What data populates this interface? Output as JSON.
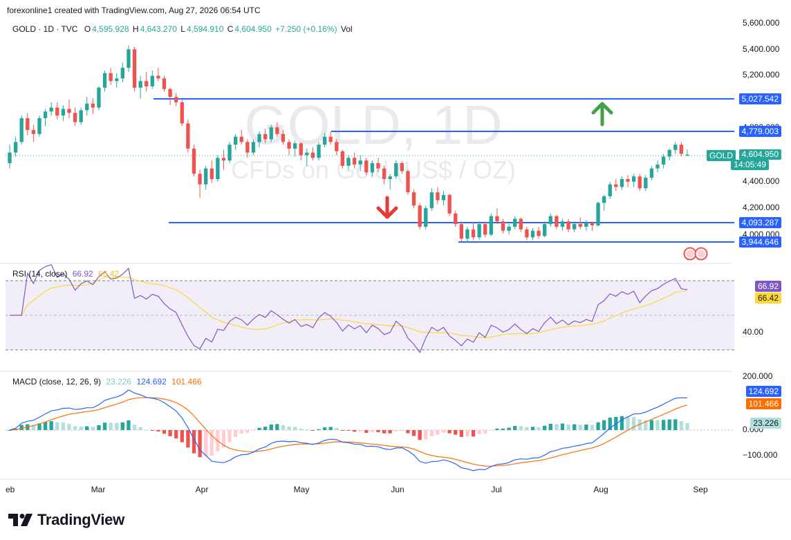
{
  "header": {
    "publisher_line": "forexonline1 created with TradingView.com, Aug 27, 2026 06:54 UTC",
    "symbol": "GOLD · 1D · TVC",
    "open_label": "O",
    "open": "4,595.928",
    "high_label": "H",
    "high": "4,643.270",
    "low_label": "L",
    "low": "4,594.910",
    "close_label": "C",
    "close": "4,604.950",
    "change": "+7.250 (+0.16%)",
    "vol_label": "Vol"
  },
  "watermark": {
    "line1": "GOLD, 1D",
    "line2": "CFDs on Gold (US$ / OZ)"
  },
  "price_axis": {
    "ticks": [
      "5,600.000",
      "5,400.000",
      "5,200.000",
      "4,800.000",
      "4,400.000",
      "4,200.000",
      "4,000.000"
    ],
    "last_label": "GOLD",
    "last_price": "4,604.950",
    "countdown": "14:05:49"
  },
  "levels": [
    {
      "label": "5,027.542",
      "value": 5027.542
    },
    {
      "label": "4,779.003",
      "value": 4779.003
    },
    {
      "label": "4,093.287",
      "value": 4093.287
    },
    {
      "label": "3,944.646",
      "value": 3944.646
    }
  ],
  "time_axis": [
    "eb",
    "Mar",
    "Apr",
    "May",
    "Jun",
    "Jul",
    "Aug",
    "Sep"
  ],
  "rsi": {
    "title": "RSI (14, close)",
    "value": "66.92",
    "ma": "66.42",
    "tick": "40.00"
  },
  "macd": {
    "title": "MACD (close, 12, 26, 9)",
    "hist": "23.226",
    "macd": "124.692",
    "signal": "101.466",
    "ticks": [
      "200.000",
      "0.000",
      "−100.000"
    ]
  },
  "colors": {
    "up": "#26a69a",
    "down": "#ef5350",
    "level_line": "#2962ff",
    "rsi_line": "#7e57c2",
    "rsi_ma": "#fdd835",
    "macd_line": "#2962ff",
    "signal_line": "#ff6d00",
    "arrow_up": "#43a047",
    "arrow_down": "#e53935"
  },
  "brand": {
    "name": "TradingView"
  },
  "chart_data": {
    "type": "candlestick",
    "title": "GOLD, 1D",
    "subtitle": "CFDs on Gold (US$ / OZ)",
    "ylim": [
      3880,
      5640
    ],
    "x_months": [
      "Feb",
      "Mar",
      "Apr",
      "May",
      "Jun",
      "Jul",
      "Aug",
      "Sep"
    ],
    "horizontal_levels": [
      5027.542,
      4779.003,
      4093.287,
      3944.646
    ],
    "candles_ohlc": [
      [
        4540,
        4680,
        4500,
        4620
      ],
      [
        4620,
        4740,
        4590,
        4700
      ],
      [
        4700,
        4900,
        4680,
        4880
      ],
      [
        4880,
        4920,
        4750,
        4790
      ],
      [
        4790,
        4830,
        4700,
        4760
      ],
      [
        4760,
        4900,
        4740,
        4880
      ],
      [
        4880,
        4950,
        4820,
        4930
      ],
      [
        4930,
        5000,
        4900,
        4960
      ],
      [
        4960,
        5000,
        4870,
        4900
      ],
      [
        4900,
        4980,
        4860,
        4950
      ],
      [
        4950,
        5020,
        4880,
        4920
      ],
      [
        4920,
        4960,
        4820,
        4850
      ],
      [
        4850,
        4960,
        4830,
        4940
      ],
      [
        4940,
        5040,
        4900,
        4990
      ],
      [
        4990,
        5030,
        4910,
        4960
      ],
      [
        4960,
        5120,
        4940,
        5110
      ],
      [
        5110,
        5240,
        5080,
        5220
      ],
      [
        5220,
        5260,
        5130,
        5160
      ],
      [
        5160,
        5220,
        5110,
        5180
      ],
      [
        5180,
        5300,
        5150,
        5260
      ],
      [
        5260,
        5430,
        5230,
        5400
      ],
      [
        5400,
        5420,
        5080,
        5110
      ],
      [
        5110,
        5200,
        5030,
        5160
      ],
      [
        5160,
        5230,
        5080,
        5120
      ],
      [
        5120,
        5240,
        5100,
        5200
      ],
      [
        5200,
        5260,
        5160,
        5180
      ],
      [
        5180,
        5200,
        5080,
        5100
      ],
      [
        5100,
        5110,
        4980,
        5040
      ],
      [
        5040,
        5070,
        4970,
        5000
      ],
      [
        5000,
        5020,
        4820,
        4840
      ],
      [
        4840,
        4870,
        4620,
        4650
      ],
      [
        4650,
        4680,
        4440,
        4460
      ],
      [
        4460,
        4490,
        4280,
        4380
      ],
      [
        4380,
        4520,
        4340,
        4500
      ],
      [
        4500,
        4560,
        4390,
        4420
      ],
      [
        4420,
        4600,
        4400,
        4580
      ],
      [
        4580,
        4640,
        4490,
        4560
      ],
      [
        4560,
        4700,
        4540,
        4680
      ],
      [
        4680,
        4760,
        4640,
        4740
      ],
      [
        4740,
        4790,
        4680,
        4700
      ],
      [
        4700,
        4720,
        4580,
        4620
      ],
      [
        4620,
        4720,
        4600,
        4700
      ],
      [
        4700,
        4780,
        4660,
        4760
      ],
      [
        4760,
        4800,
        4690,
        4720
      ],
      [
        4720,
        4830,
        4700,
        4810
      ],
      [
        4810,
        4850,
        4740,
        4760
      ],
      [
        4760,
        4790,
        4680,
        4700
      ],
      [
        4700,
        4720,
        4600,
        4650
      ],
      [
        4650,
        4710,
        4590,
        4690
      ],
      [
        4690,
        4700,
        4560,
        4600
      ],
      [
        4600,
        4650,
        4520,
        4620
      ],
      [
        4620,
        4660,
        4560,
        4580
      ],
      [
        4580,
        4700,
        4560,
        4680
      ],
      [
        4680,
        4770,
        4660,
        4740
      ],
      [
        4740,
        4780,
        4680,
        4700
      ],
      [
        4700,
        4720,
        4600,
        4630
      ],
      [
        4630,
        4640,
        4500,
        4520
      ],
      [
        4520,
        4600,
        4490,
        4580
      ],
      [
        4580,
        4620,
        4500,
        4530
      ],
      [
        4530,
        4600,
        4480,
        4560
      ],
      [
        4560,
        4580,
        4450,
        4470
      ],
      [
        4470,
        4560,
        4440,
        4540
      ],
      [
        4540,
        4580,
        4470,
        4500
      ],
      [
        4500,
        4520,
        4380,
        4420
      ],
      [
        4420,
        4460,
        4340,
        4440
      ],
      [
        4440,
        4560,
        4420,
        4540
      ],
      [
        4540,
        4550,
        4460,
        4480
      ],
      [
        4480,
        4490,
        4300,
        4320
      ],
      [
        4320,
        4340,
        4200,
        4220
      ],
      [
        4220,
        4240,
        4040,
        4060
      ],
      [
        4060,
        4220,
        4040,
        4200
      ],
      [
        4200,
        4350,
        4180,
        4320
      ],
      [
        4320,
        4360,
        4230,
        4260
      ],
      [
        4260,
        4330,
        4220,
        4300
      ],
      [
        4300,
        4310,
        4140,
        4160
      ],
      [
        4160,
        4180,
        4060,
        4080
      ],
      [
        4080,
        4100,
        3950,
        3970
      ],
      [
        3970,
        4060,
        3950,
        4040
      ],
      [
        4040,
        4090,
        3960,
        3980
      ],
      [
        3980,
        4100,
        3960,
        4080
      ],
      [
        4080,
        4100,
        3980,
        4000
      ],
      [
        4000,
        4160,
        3990,
        4140
      ],
      [
        4140,
        4200,
        4080,
        4100
      ],
      [
        4100,
        4120,
        4010,
        4030
      ],
      [
        4030,
        4080,
        4000,
        4060
      ],
      [
        4060,
        4140,
        4040,
        4120
      ],
      [
        4120,
        4130,
        4020,
        4040
      ],
      [
        4040,
        4060,
        3960,
        3980
      ],
      [
        3980,
        4050,
        3960,
        4030
      ],
      [
        4030,
        4060,
        3970,
        3990
      ],
      [
        3990,
        4100,
        3980,
        4080
      ],
      [
        4080,
        4160,
        4060,
        4140
      ],
      [
        4140,
        4150,
        4040,
        4060
      ],
      [
        4060,
        4120,
        4030,
        4100
      ],
      [
        4100,
        4120,
        4020,
        4040
      ],
      [
        4040,
        4100,
        4020,
        4080
      ],
      [
        4080,
        4130,
        4040,
        4060
      ],
      [
        4060,
        4110,
        4030,
        4090
      ],
      [
        4090,
        4100,
        4030,
        4070
      ],
      [
        4070,
        4250,
        4060,
        4240
      ],
      [
        4240,
        4300,
        4180,
        4290
      ],
      [
        4290,
        4400,
        4270,
        4380
      ],
      [
        4380,
        4420,
        4330,
        4360
      ],
      [
        4360,
        4440,
        4340,
        4420
      ],
      [
        4420,
        4450,
        4360,
        4400
      ],
      [
        4400,
        4460,
        4360,
        4440
      ],
      [
        4440,
        4460,
        4330,
        4350
      ],
      [
        4350,
        4450,
        4330,
        4430
      ],
      [
        4430,
        4520,
        4410,
        4500
      ],
      [
        4500,
        4560,
        4470,
        4530
      ],
      [
        4530,
        4610,
        4500,
        4590
      ],
      [
        4590,
        4650,
        4560,
        4640
      ],
      [
        4640,
        4700,
        4610,
        4680
      ],
      [
        4680,
        4700,
        4590,
        4610
      ],
      [
        4596,
        4643,
        4595,
        4605
      ]
    ],
    "rsi": {
      "period": 14,
      "last": 66.92,
      "ma_last": 66.42,
      "upper": 70,
      "lower": 30,
      "ylim": [
        20,
        80
      ]
    },
    "macd": {
      "fast": 12,
      "slow": 26,
      "signal_period": 9,
      "macd_last": 124.692,
      "signal_last": 101.466,
      "hist_last": 23.226,
      "ylim": [
        -170,
        210
      ]
    }
  }
}
